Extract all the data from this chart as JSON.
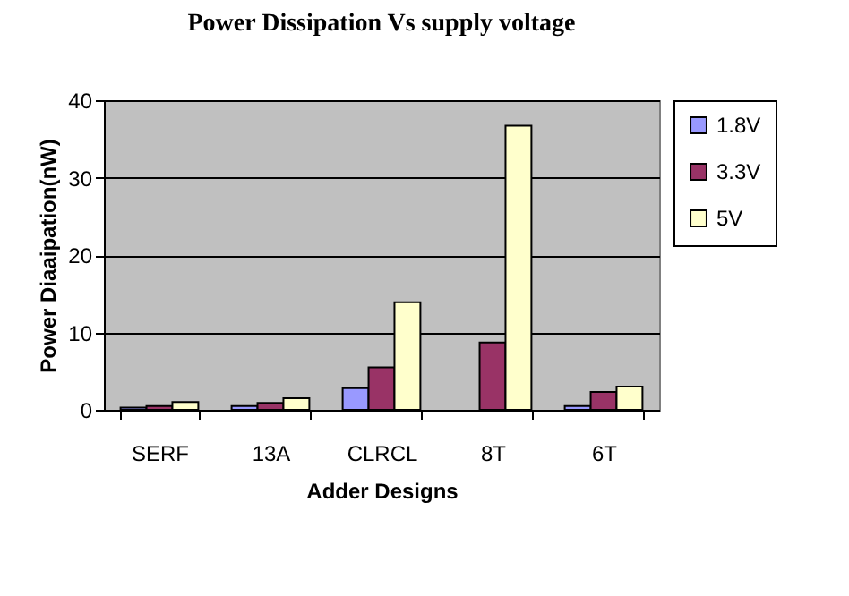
{
  "chart_data": {
    "type": "bar",
    "title": "Power Dissipation Vs supply voltage",
    "xlabel": "Adder Designs",
    "ylabel": "Power Diaaipation(nW)",
    "categories": [
      "SERF",
      "13A",
      "CLRCL",
      "8T",
      "6T"
    ],
    "series": [
      {
        "name": "1.8V",
        "color": "#9999ff",
        "values": [
          0.3,
          0.5,
          2.8,
          null,
          0.5
        ]
      },
      {
        "name": "3.3V",
        "color": "#993366",
        "values": [
          0.5,
          0.9,
          5.5,
          8.7,
          2.3
        ]
      },
      {
        "name": "5V",
        "color": "#ffffcc",
        "values": [
          1.0,
          1.5,
          13.9,
          36.7,
          3.0
        ]
      }
    ],
    "ylim": [
      0,
      40
    ],
    "yticks": [
      0,
      10,
      20,
      30,
      40
    ],
    "grid": "y",
    "legend": "right"
  }
}
